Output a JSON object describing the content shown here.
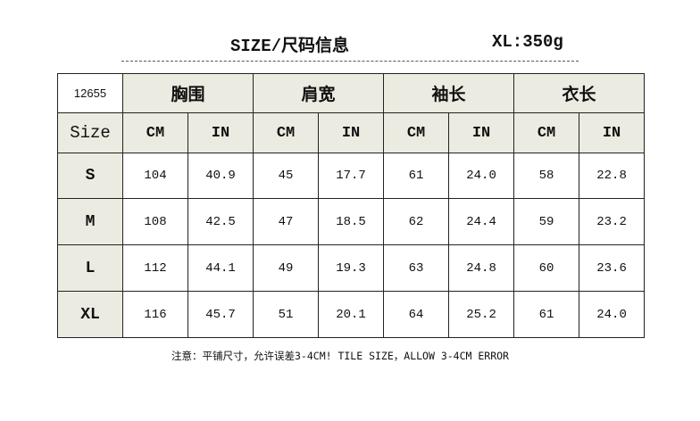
{
  "title": "SIZE/尺码信息",
  "weight": "XL:350g",
  "table": {
    "code": "12655",
    "groups": [
      "胸围",
      "肩宽",
      "袖长",
      "衣长"
    ],
    "size_label": "Size",
    "units": [
      "CM",
      "IN",
      "CM",
      "IN",
      "CM",
      "IN",
      "CM",
      "IN"
    ],
    "rows": [
      {
        "size": "S",
        "values": [
          "104",
          "40.9",
          "45",
          "17.7",
          "61",
          "24.0",
          "58",
          "22.8"
        ]
      },
      {
        "size": "M",
        "values": [
          "108",
          "42.5",
          "47",
          "18.5",
          "62",
          "24.4",
          "59",
          "23.2"
        ]
      },
      {
        "size": "L",
        "values": [
          "112",
          "44.1",
          "49",
          "19.3",
          "63",
          "24.8",
          "60",
          "23.6"
        ]
      },
      {
        "size": "XL",
        "values": [
          "116",
          "45.7",
          "51",
          "20.1",
          "64",
          "25.2",
          "61",
          "24.0"
        ]
      }
    ]
  },
  "note": "注意：平铺尺寸，允许误差3-4CM! TILE SIZE，ALLOW 3-4CM ERROR",
  "colors": {
    "header_bg": "#ecebe1",
    "border": "#222222"
  }
}
